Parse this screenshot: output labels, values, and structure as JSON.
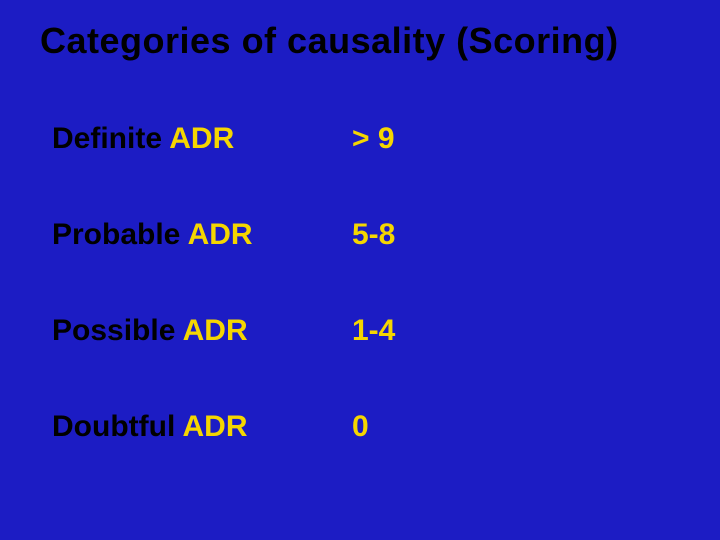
{
  "title": "Categories of causality (Scoring)",
  "rows": [
    {
      "labelBlack": "Definite",
      "labelYellow": " ADR",
      "score": "> 9"
    },
    {
      "labelBlack": "Probable",
      "labelYellow": " ADR",
      "score": "5-8"
    },
    {
      "labelBlack": "Possible",
      "labelYellow": " ADR",
      "score": "1-4"
    },
    {
      "labelBlack": "Doubtful",
      "labelYellow": " ADR",
      "score": "0"
    }
  ],
  "colors": {
    "background": "#1c1cc4",
    "titleText": "#000000",
    "labelBlack": "#000000",
    "accent": "#f5d600"
  },
  "fontsize": {
    "title": 36,
    "body": 30
  }
}
